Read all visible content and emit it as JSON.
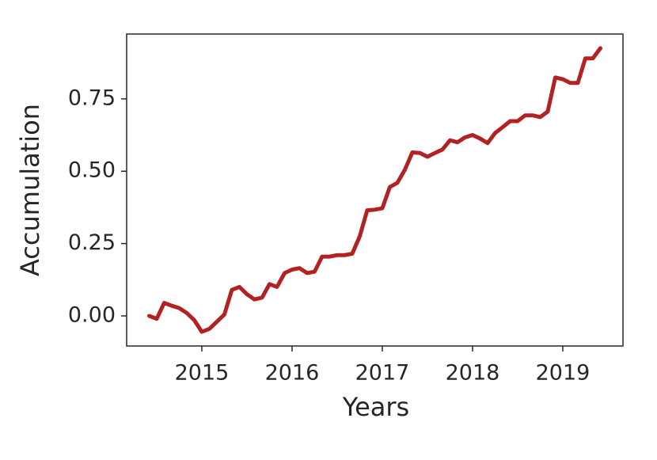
{
  "chart_data": {
    "type": "line",
    "xlabel": "Years",
    "ylabel": "Accumulation",
    "x": [
      2014.417,
      2014.5,
      2014.583,
      2014.667,
      2014.75,
      2014.833,
      2014.917,
      2015.0,
      2015.083,
      2015.167,
      2015.25,
      2015.333,
      2015.417,
      2015.5,
      2015.583,
      2015.667,
      2015.75,
      2015.833,
      2015.917,
      2016.0,
      2016.083,
      2016.167,
      2016.25,
      2016.333,
      2016.417,
      2016.5,
      2016.583,
      2016.667,
      2016.75,
      2016.833,
      2016.917,
      2017.0,
      2017.083,
      2017.167,
      2017.25,
      2017.333,
      2017.417,
      2017.5,
      2017.583,
      2017.667,
      2017.75,
      2017.833,
      2017.917,
      2018.0,
      2018.083,
      2018.167,
      2018.25,
      2018.333,
      2018.417,
      2018.5,
      2018.583,
      2018.667,
      2018.75,
      2018.833,
      2018.917,
      2019.0,
      2019.083,
      2019.167,
      2019.25,
      2019.333,
      2019.417
    ],
    "series": [
      {
        "name": "Accumulation",
        "color": "#b22222",
        "values": [
          0.0,
          -0.01,
          0.045,
          0.035,
          0.027,
          0.01,
          -0.015,
          -0.055,
          -0.045,
          -0.02,
          0.005,
          0.09,
          0.1,
          0.075,
          0.057,
          0.063,
          0.11,
          0.1,
          0.148,
          0.16,
          0.165,
          0.148,
          0.153,
          0.205,
          0.205,
          0.21,
          0.21,
          0.215,
          0.275,
          0.365,
          0.367,
          0.372,
          0.445,
          0.46,
          0.505,
          0.565,
          0.563,
          0.55,
          0.563,
          0.575,
          0.607,
          0.6,
          0.617,
          0.625,
          0.613,
          0.597,
          0.632,
          0.652,
          0.673,
          0.673,
          0.693,
          0.693,
          0.687,
          0.706,
          0.824,
          0.818,
          0.805,
          0.805,
          0.89,
          0.89,
          0.925
        ]
      }
    ],
    "xlim": [
      2014.167,
      2019.667
    ],
    "xticks": [
      2015,
      2016,
      2017,
      2018,
      2019
    ],
    "ylim": [
      -0.104,
      0.974
    ],
    "yticks": [
      {
        "value": 0,
        "label": "0.00"
      },
      {
        "value": 0.25,
        "label": "0.25"
      },
      {
        "value": 0.5,
        "label": "0.50"
      },
      {
        "value": 0.75,
        "label": "0.75"
      }
    ],
    "grid": false
  }
}
